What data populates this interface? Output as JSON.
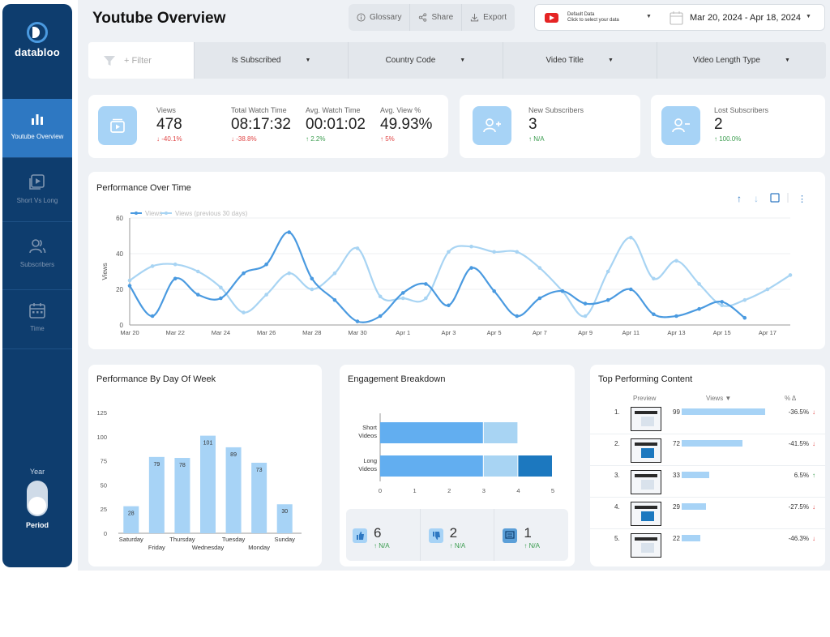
{
  "brand": {
    "name": "databloo"
  },
  "sidebar": {
    "items": [
      {
        "label": "Youtube Overview",
        "icon": "bar-chart-icon",
        "active": true
      },
      {
        "label": "Short Vs Long",
        "icon": "video-play-icon",
        "active": false
      },
      {
        "label": "Subscribers",
        "icon": "users-icon",
        "active": false
      },
      {
        "label": "Time",
        "icon": "calendar-icon",
        "active": false
      }
    ],
    "toggle": {
      "top_label": "Year",
      "bottom_label": "Period"
    }
  },
  "header": {
    "title": "Youtube Overview",
    "buttons": {
      "glossary": "Glossary",
      "share": "Share",
      "export": "Export"
    },
    "data_source": {
      "line1": "Default Data",
      "line2": "Click to select your data"
    },
    "date_range": "Mar 20, 2024 - Apr 18, 2024"
  },
  "filters": {
    "add_filter": "+ Filter",
    "items": [
      "Is Subscribed",
      "Country Code",
      "Video Title",
      "Video Length Type"
    ]
  },
  "kpis": {
    "views": {
      "label": "Views",
      "value": "478",
      "change": "-40.1%"
    },
    "watch_time": {
      "label": "Total Watch Time",
      "value": "08:17:32",
      "change": "-38.8%"
    },
    "avg_watch": {
      "label": "Avg. Watch Time",
      "value": "00:01:02",
      "change": "2.2%"
    },
    "avg_view_pct": {
      "label": "Avg. View %",
      "value": "49.93%",
      "change": "5%"
    },
    "new_subs": {
      "label": "New Subscribers",
      "value": "3",
      "change": "N/A"
    },
    "lost_subs": {
      "label": "Lost Subscribers",
      "value": "2",
      "change": "100.0%"
    }
  },
  "performance_over_time": {
    "title": "Performance Over Time",
    "ylabel": "Views",
    "yticks": [
      "0",
      "20",
      "40",
      "60"
    ],
    "xticks": [
      "Mar 20",
      "Mar 22",
      "Mar 24",
      "Mar 26",
      "Mar 28",
      "Mar 30",
      "Apr 1",
      "Apr 3",
      "Apr 5",
      "Apr 7",
      "Apr 9",
      "Apr 11",
      "Apr 13",
      "Apr 15",
      "Apr 17"
    ],
    "legend": [
      "Views",
      "Views (previous 30 days)"
    ]
  },
  "day_of_week": {
    "title": "Performance By Day Of Week",
    "yticks": [
      "0",
      "25",
      "50",
      "75",
      "100",
      "125"
    ]
  },
  "engagement": {
    "title": "Engagement Breakdown",
    "xticks": [
      "0",
      "1",
      "2",
      "3",
      "4",
      "5"
    ],
    "stats": [
      {
        "icon": "thumbs-up-icon",
        "value": "6",
        "change": "N/A"
      },
      {
        "icon": "thumbs-down-icon",
        "value": "2",
        "change": "N/A"
      },
      {
        "icon": "comment-icon",
        "value": "1",
        "change": "N/A"
      }
    ]
  },
  "top_content": {
    "title": "Top Performing Content",
    "columns": {
      "preview": "Preview",
      "views": "Views",
      "pct": "% Δ"
    },
    "rows": [
      {
        "rank": "1.",
        "views": 99,
        "views_label": "99",
        "pct": "-36.5%",
        "trend": "down"
      },
      {
        "rank": "2.",
        "views": 72,
        "views_label": "72",
        "pct": "-41.5%",
        "trend": "down"
      },
      {
        "rank": "3.",
        "views": 33,
        "views_label": "33",
        "pct": "6.5%",
        "trend": "up"
      },
      {
        "rank": "4.",
        "views": 29,
        "views_label": "29",
        "pct": "-27.5%",
        "trend": "down"
      },
      {
        "rank": "5.",
        "views": 22,
        "views_label": "22",
        "pct": "-46.3%",
        "trend": "down"
      }
    ]
  },
  "colors": {
    "sidebar": "#0e3d6e",
    "active": "#2e78c2",
    "series_main": "#4a9ae0",
    "series_prev": "#a8d4f3",
    "bar": "#a7d3f6",
    "dark_blue": "#1c78bf"
  },
  "chart_data": [
    {
      "type": "line",
      "x": [
        "Mar 20",
        "Mar 21",
        "Mar 22",
        "Mar 23",
        "Mar 24",
        "Mar 25",
        "Mar 26",
        "Mar 27",
        "Mar 28",
        "Mar 29",
        "Mar 30",
        "Mar 31",
        "Apr 1",
        "Apr 2",
        "Apr 3",
        "Apr 4",
        "Apr 5",
        "Apr 6",
        "Apr 7",
        "Apr 8",
        "Apr 9",
        "Apr 10",
        "Apr 11",
        "Apr 12",
        "Apr 13",
        "Apr 14",
        "Apr 15",
        "Apr 16",
        "Apr 17",
        "Apr 18"
      ],
      "series": [
        {
          "name": "Views",
          "values": [
            22,
            5,
            26,
            17,
            15,
            29,
            34,
            52,
            26,
            14,
            2,
            5,
            18,
            23,
            11,
            32,
            19,
            5,
            15,
            19,
            12,
            14,
            20,
            6,
            5,
            9,
            13,
            4,
            null,
            null
          ]
        },
        {
          "name": "Views (previous 30 days)",
          "values": [
            25,
            33,
            34,
            30,
            21,
            7,
            17,
            29,
            20,
            29,
            43,
            16,
            15,
            15,
            41,
            44,
            41,
            41,
            32,
            19,
            5,
            30,
            49,
            26,
            36,
            23,
            11,
            14,
            20,
            28
          ]
        }
      ],
      "ylabel": "Views",
      "ylim": [
        0,
        60
      ]
    },
    {
      "type": "bar",
      "categories": [
        "Saturday",
        "Friday",
        "Thursday",
        "Wednesday",
        "Tuesday",
        "Monday",
        "Sunday"
      ],
      "values": [
        28,
        79,
        78,
        101,
        89,
        73,
        30
      ],
      "ylim": [
        0,
        125
      ]
    },
    {
      "type": "bar",
      "orientation": "horizontal",
      "stacked": true,
      "categories": [
        "Short Videos",
        "Long Videos"
      ],
      "series": [
        {
          "values": [
            3,
            3
          ]
        },
        {
          "values": [
            1,
            1
          ]
        },
        {
          "values": [
            0,
            1
          ]
        }
      ],
      "xlim": [
        0,
        5
      ]
    }
  ]
}
